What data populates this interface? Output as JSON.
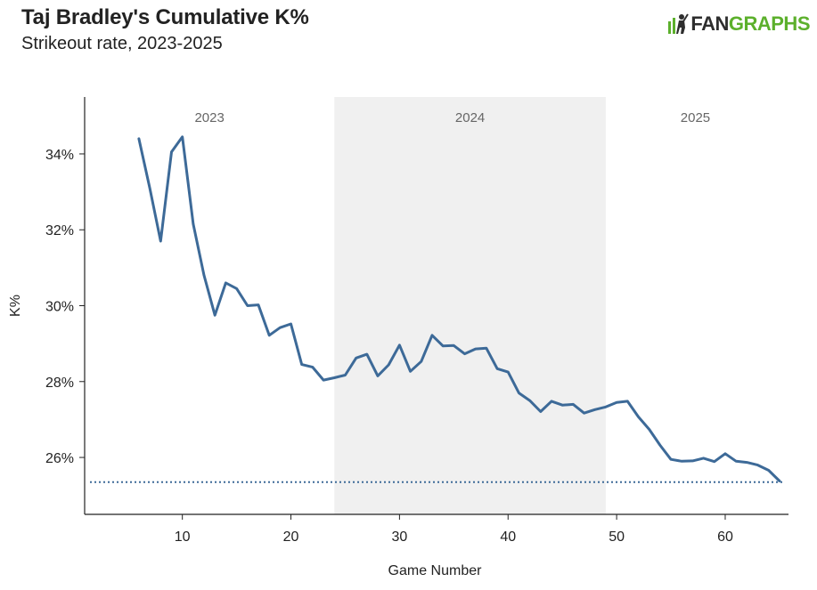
{
  "header": {
    "title": "Taj Bradley's Cumulative K%",
    "subtitle": "Strikeout rate, 2023-2025",
    "logo_text_dark": "FAN",
    "logo_text_green": "GRAPHS"
  },
  "colors": {
    "line": "#3d6a98",
    "band": "#f0f0f0",
    "band_label": "#666666",
    "reference": "#3d6a98",
    "logo_green": "#5cb02c"
  },
  "chart_data": {
    "type": "line",
    "title": "Taj Bradley's Cumulative K%",
    "subtitle": "Strikeout rate, 2023-2025",
    "xlabel": "Game Number",
    "ylabel": "K%",
    "xlim": [
      1,
      65.5
    ],
    "ylim": [
      24.5,
      35.5
    ],
    "x_ticks": [
      10,
      20,
      30,
      40,
      50,
      60
    ],
    "y_ticks": [
      26,
      28,
      30,
      32,
      34
    ],
    "y_tick_suffix": "%",
    "grid": false,
    "season_bands": [
      {
        "label": "2023",
        "start": 1,
        "end": 24,
        "shaded": false
      },
      {
        "label": "2024",
        "start": 24,
        "end": 49,
        "shaded": true
      },
      {
        "label": "2025",
        "start": 49,
        "end": 65.5,
        "shaded": false
      }
    ],
    "reference_line": {
      "y": 25.35,
      "style": "dotted"
    },
    "series": [
      {
        "x": [
          6,
          7,
          8,
          9,
          10,
          11,
          12,
          13,
          14,
          15,
          16,
          17,
          18,
          19,
          20,
          21,
          22,
          23,
          24,
          25,
          26,
          27,
          28,
          29,
          30,
          31,
          32,
          33,
          34,
          35,
          36,
          37,
          38,
          39,
          40,
          41,
          42,
          43,
          44,
          45,
          46,
          47,
          48,
          49,
          50,
          51,
          52,
          53,
          54,
          55,
          56,
          57,
          58,
          59,
          60,
          61,
          62,
          63,
          64,
          65
        ],
        "values": [
          34.4,
          33.1,
          31.7,
          34.05,
          34.45,
          32.15,
          30.8,
          29.75,
          30.6,
          30.45,
          30.0,
          30.02,
          29.22,
          29.42,
          29.52,
          28.45,
          28.38,
          28.04,
          28.1,
          28.17,
          28.62,
          28.72,
          28.15,
          28.44,
          28.96,
          28.27,
          28.53,
          29.22,
          28.94,
          28.95,
          28.73,
          28.86,
          28.88,
          28.34,
          28.25,
          27.7,
          27.5,
          27.21,
          27.48,
          27.38,
          27.4,
          27.17,
          27.26,
          27.33,
          27.45,
          27.48,
          27.07,
          26.74,
          26.32,
          25.95,
          25.9,
          25.91,
          25.98,
          25.89,
          26.1,
          25.9,
          25.87,
          25.8,
          25.66,
          25.38
        ]
      }
    ]
  }
}
